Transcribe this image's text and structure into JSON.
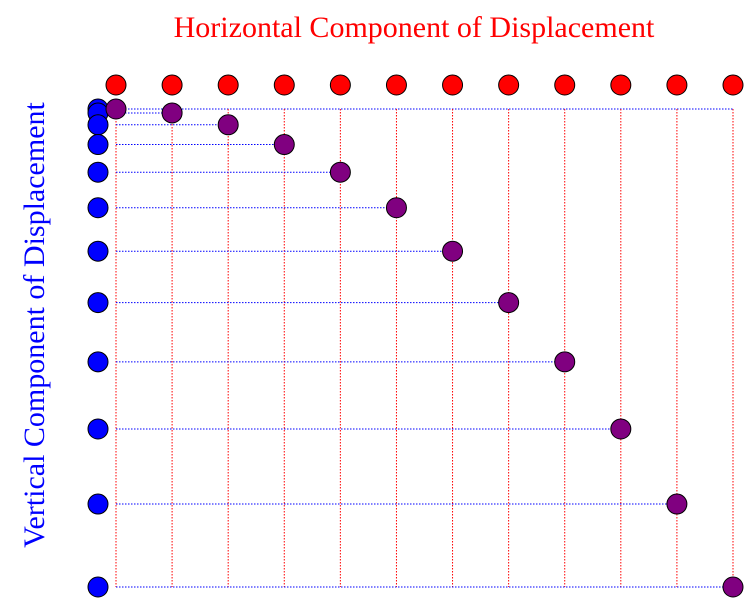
{
  "title": "Horizontal Component of Displacement",
  "side_label": "Vertical Component of Displacement",
  "colors": {
    "horizontal": "#ff0000",
    "vertical": "#0000ff",
    "combined": "#800080",
    "outline": "#000000"
  },
  "chart_data": {
    "type": "scatter",
    "title": "Horizontal Component of Displacement",
    "ylabel": "Vertical Component of Displacement",
    "xlabel": "",
    "x": [
      0,
      1,
      2,
      3,
      4,
      5,
      6,
      7,
      8,
      9,
      10,
      11
    ],
    "y": [
      0,
      1,
      4,
      9,
      16,
      25,
      36,
      49,
      64,
      81,
      100,
      121
    ],
    "xlim": [
      0,
      11
    ],
    "ylim": [
      0,
      121
    ],
    "y_direction": "down",
    "series": [
      {
        "color": "#ff0000",
        "role": "horizontal-component-markers"
      },
      {
        "color": "#0000ff",
        "role": "vertical-component-markers"
      },
      {
        "color": "#800080",
        "role": "resultant-position-markers"
      }
    ],
    "grid": "dotted projection lines",
    "legend": "none"
  }
}
